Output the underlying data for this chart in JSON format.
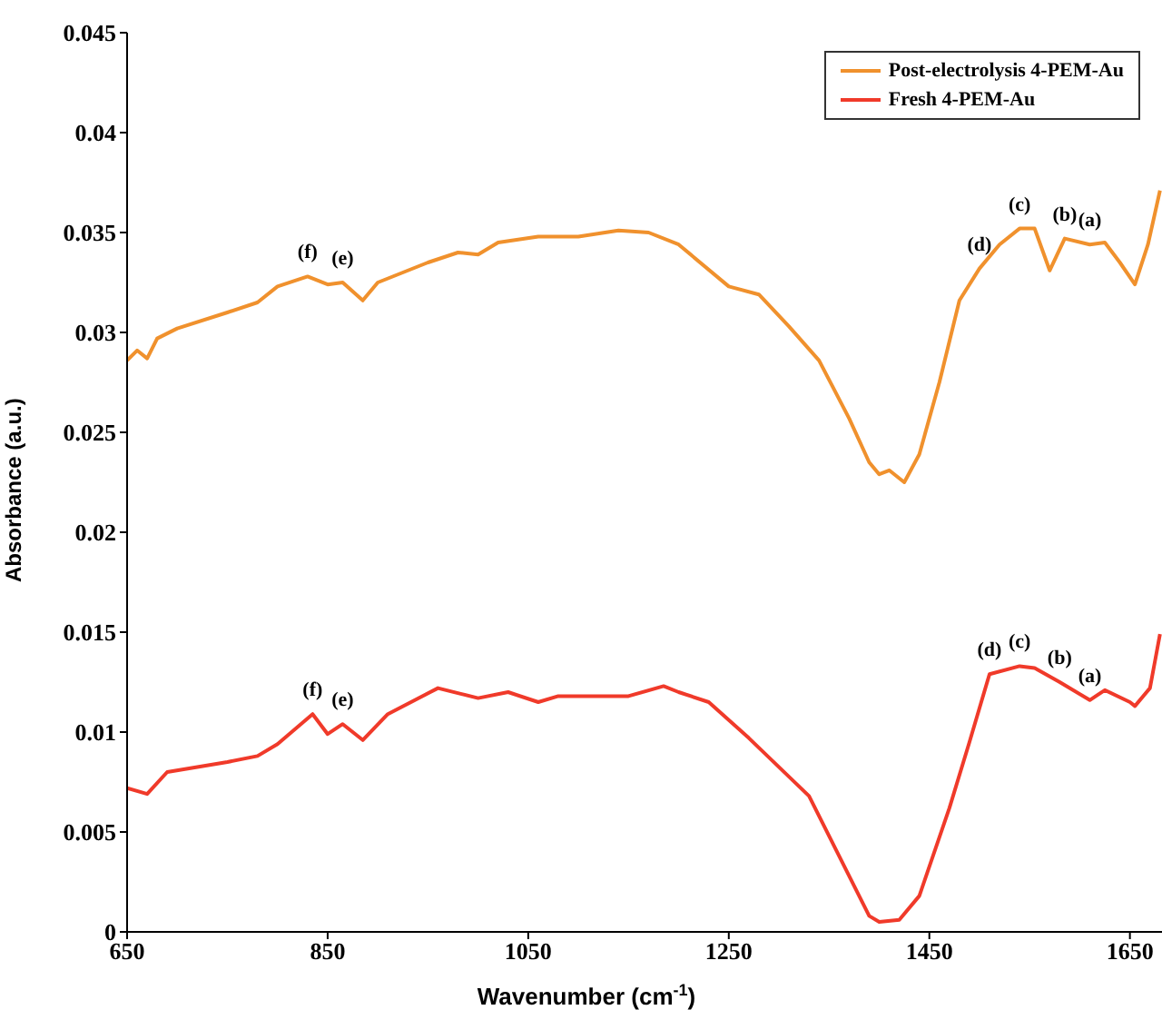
{
  "chart_data": {
    "type": "line",
    "xlabel": "Wavenumber (cm$^{-1}$)",
    "ylabel": "Absorbance (a.u.)",
    "xlim": [
      650,
      1682
    ],
    "xticks": [
      650,
      850,
      1050,
      1250,
      1450,
      1650
    ],
    "ylim": [
      0,
      0.045
    ],
    "yticks": [
      0,
      0.005,
      0.01,
      0.015,
      0.02,
      0.025,
      0.03,
      0.035,
      0.04,
      0.045
    ],
    "grid": false,
    "legend": "top right",
    "marker": "none",
    "line_style": "solid",
    "series": [
      {
        "name": "Post-electrolysis 4-PEM-Au",
        "color": "#f0912d",
        "x": [
          650,
          660,
          670,
          680,
          700,
          750,
          780,
          800,
          830,
          850,
          865,
          885,
          900,
          950,
          980,
          1000,
          1020,
          1060,
          1100,
          1140,
          1170,
          1200,
          1250,
          1280,
          1310,
          1340,
          1370,
          1390,
          1400,
          1410,
          1425,
          1440,
          1460,
          1480,
          1500,
          1520,
          1540,
          1555,
          1570,
          1585,
          1610,
          1625,
          1640,
          1655,
          1668,
          1680
        ],
        "values": [
          0.0286,
          0.0291,
          0.0287,
          0.0297,
          0.0302,
          0.031,
          0.0315,
          0.0323,
          0.0328,
          0.0324,
          0.0325,
          0.0316,
          0.0325,
          0.0335,
          0.034,
          0.0339,
          0.0345,
          0.0348,
          0.0348,
          0.0351,
          0.035,
          0.0344,
          0.0323,
          0.0319,
          0.0303,
          0.0286,
          0.0257,
          0.0235,
          0.0229,
          0.0231,
          0.0225,
          0.0239,
          0.0275,
          0.0316,
          0.0332,
          0.0344,
          0.0352,
          0.0352,
          0.0331,
          0.0347,
          0.0344,
          0.0345,
          0.0335,
          0.0324,
          0.0344,
          0.0371
        ]
      },
      {
        "name": "Fresh 4-PEM-Au",
        "color": "#f03a2a",
        "x": [
          650,
          670,
          690,
          750,
          780,
          800,
          835,
          850,
          865,
          885,
          910,
          960,
          1000,
          1030,
          1060,
          1080,
          1150,
          1185,
          1200,
          1230,
          1270,
          1330,
          1360,
          1390,
          1400,
          1420,
          1440,
          1470,
          1490,
          1510,
          1540,
          1555,
          1580,
          1610,
          1625,
          1650,
          1655,
          1670,
          1680
        ],
        "values": [
          0.0072,
          0.0069,
          0.008,
          0.0085,
          0.0088,
          0.0094,
          0.0109,
          0.0099,
          0.0104,
          0.0096,
          0.0109,
          0.0122,
          0.0117,
          0.012,
          0.0115,
          0.0118,
          0.0118,
          0.0123,
          0.012,
          0.0115,
          0.0097,
          0.0068,
          0.0038,
          0.0008,
          0.0005,
          0.0006,
          0.0018,
          0.0062,
          0.0095,
          0.0129,
          0.0133,
          0.0132,
          0.0125,
          0.0116,
          0.0121,
          0.0115,
          0.0113,
          0.0122,
          0.0149
        ]
      }
    ],
    "annotations": [
      {
        "text": "(f)",
        "x": 830,
        "y": 0.0328
      },
      {
        "text": "(e)",
        "x": 865,
        "y": 0.0325
      },
      {
        "text": "(d)",
        "x": 1500,
        "y": 0.0332
      },
      {
        "text": "(c)",
        "x": 1540,
        "y": 0.0352
      },
      {
        "text": "(b)",
        "x": 1585,
        "y": 0.0347
      },
      {
        "text": "(a)",
        "x": 1610,
        "y": 0.0344
      },
      {
        "text": "(f)",
        "x": 835,
        "y": 0.0109
      },
      {
        "text": "(e)",
        "x": 865,
        "y": 0.0104
      },
      {
        "text": "(d)",
        "x": 1510,
        "y": 0.0129
      },
      {
        "text": "(c)",
        "x": 1540,
        "y": 0.0133
      },
      {
        "text": "(b)",
        "x": 1580,
        "y": 0.0125
      },
      {
        "text": "(a)",
        "x": 1610,
        "y": 0.0116
      }
    ]
  }
}
